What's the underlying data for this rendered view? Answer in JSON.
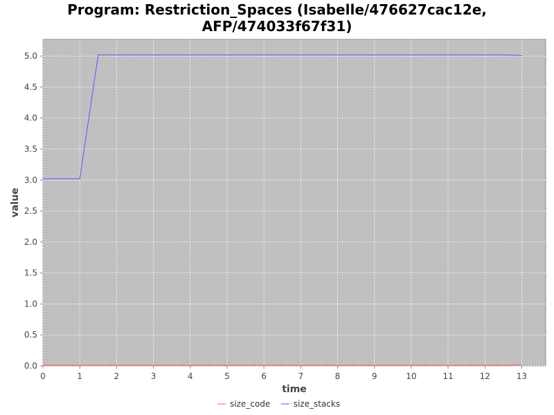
{
  "chart_data": {
    "type": "line",
    "title_lines": [
      "Program: Restriction_Spaces (Isabelle/476627cac12e,",
      "AFP/474033f67f31)"
    ],
    "xlabel": "time",
    "ylabel": "value",
    "xlim": [
      0,
      13.65
    ],
    "ylim": [
      0,
      5.27
    ],
    "x_ticks": [
      0,
      1,
      2,
      3,
      4,
      5,
      6,
      7,
      8,
      9,
      10,
      11,
      12,
      13
    ],
    "y_ticks": [
      "0.0",
      "0.5",
      "1.0",
      "1.5",
      "2.0",
      "2.5",
      "3.0",
      "3.5",
      "4.0",
      "4.5",
      "5.0"
    ],
    "grid": true,
    "legend_position": "bottom-center",
    "series": [
      {
        "name": "size_code",
        "color": "#ff5555",
        "points": [
          [
            0,
            0.01
          ],
          [
            1,
            0.01
          ],
          [
            1.5,
            0.01
          ],
          [
            12.5,
            0.01
          ],
          [
            13,
            0.02
          ]
        ]
      },
      {
        "name": "size_stacks",
        "color": "#5555ff",
        "points": [
          [
            0,
            3.02
          ],
          [
            1,
            3.02
          ],
          [
            1.5,
            5.02
          ],
          [
            12.5,
            5.02
          ],
          [
            13,
            5.01
          ]
        ]
      }
    ]
  },
  "colors": {
    "plot_background": "#c0c0c0",
    "gridline": "#ffffff"
  }
}
